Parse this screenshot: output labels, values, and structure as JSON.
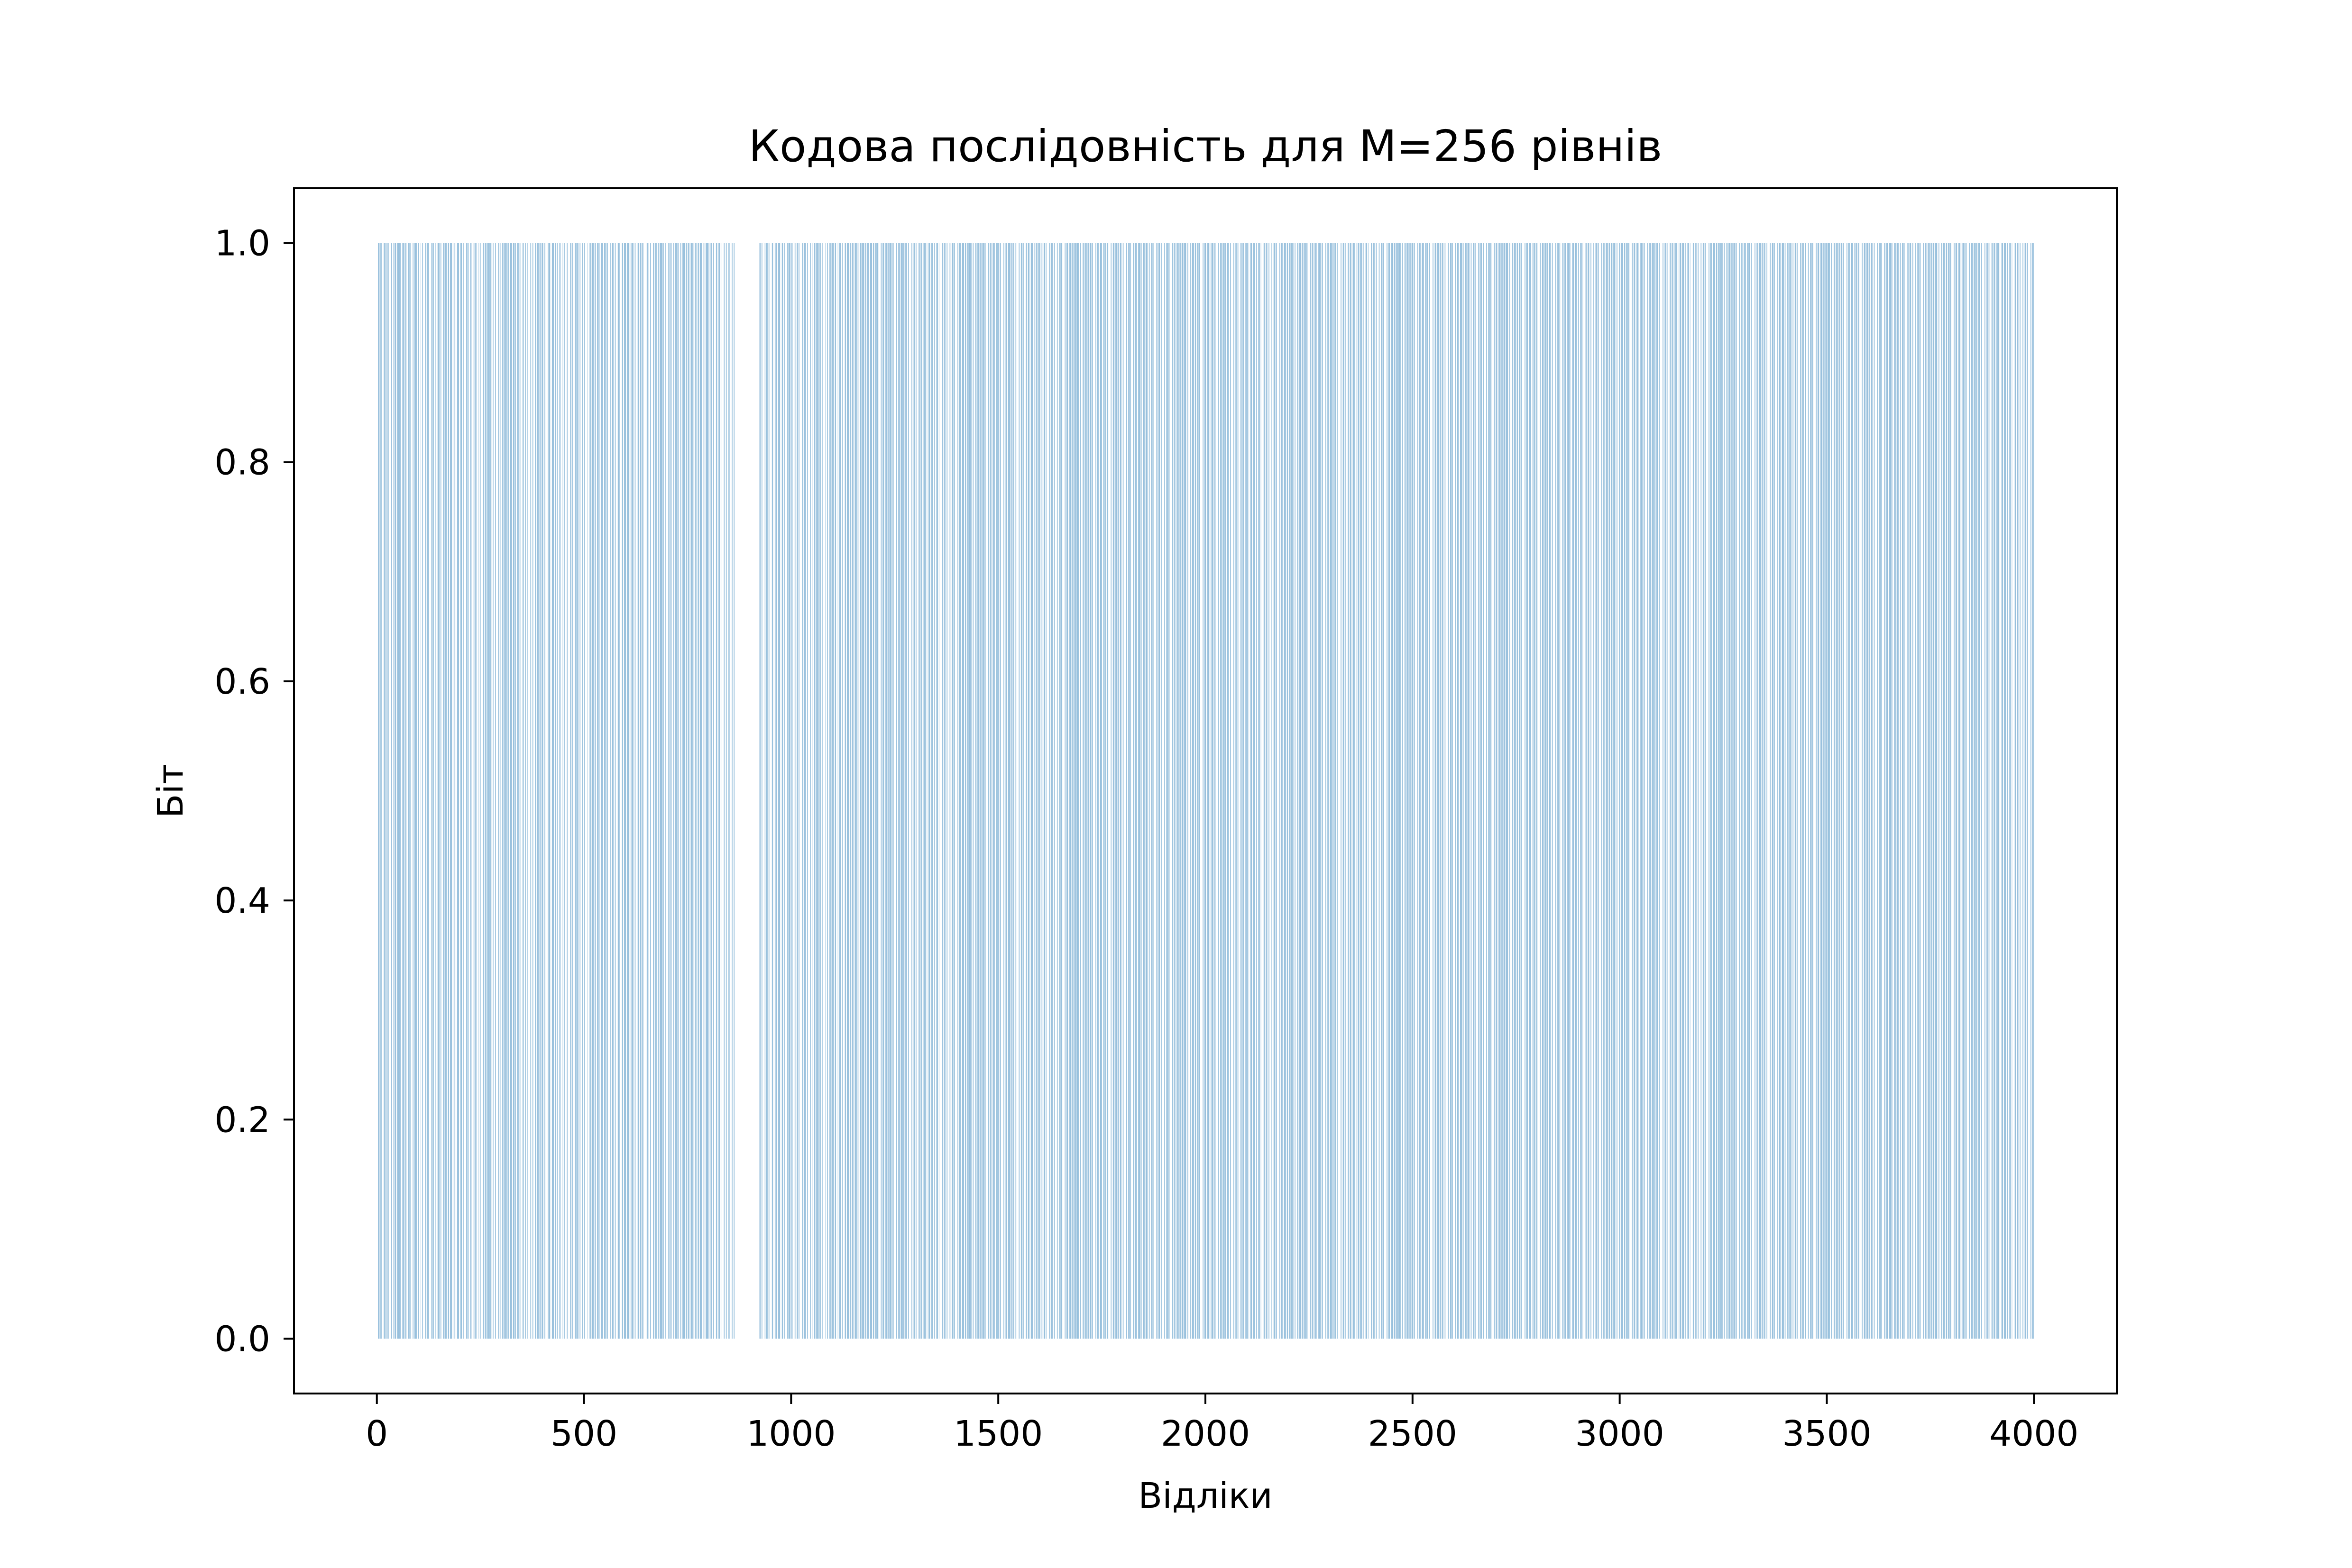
{
  "chart_data": {
    "type": "bar",
    "title": "Кодова послідовність для M=256 рівнів",
    "xlabel": "Відліки",
    "ylabel": "Біт",
    "xlim": [
      -200,
      4200
    ],
    "ylim": [
      -0.05,
      1.05
    ],
    "xticks": [
      0,
      500,
      1000,
      1500,
      2000,
      2500,
      3000,
      3500,
      4000
    ],
    "xtick_labels": [
      "0",
      "500",
      "1000",
      "1500",
      "2000",
      "2500",
      "3000",
      "3500",
      "4000"
    ],
    "yticks": [
      0.0,
      0.2,
      0.4,
      0.6,
      0.8,
      1.0
    ],
    "ytick_labels": [
      "0.0",
      "0.2",
      "0.4",
      "0.6",
      "0.8",
      "1.0"
    ],
    "grid": false,
    "color": "#1f77b4",
    "series": [
      {
        "values_encoding": "run-length bit sequence: alternating runs of 0s and 1s starting with 0; each number is the run length in samples (4000 samples, each sample is a 0 or 1 bit)",
        "runs": [
          3,
          4,
          2,
          3,
          5,
          4,
          1,
          2,
          2,
          3,
          6,
          2,
          3,
          1,
          2,
          4,
          2,
          7,
          1,
          2,
          3,
          5,
          2,
          3,
          4,
          2,
          1,
          3,
          5,
          2,
          2,
          6,
          3,
          2,
          4,
          1,
          3,
          2,
          5,
          3,
          2,
          4,
          6,
          2,
          1,
          3,
          4,
          2,
          3,
          5,
          2,
          2,
          4,
          3,
          1,
          6,
          2,
          3,
          2,
          5,
          4,
          2,
          3,
          1,
          2,
          5,
          3,
          4,
          2,
          2,
          6,
          3,
          1,
          2,
          4,
          3,
          5,
          2,
          2,
          3,
          4,
          1,
          3,
          2,
          5,
          3,
          2,
          4,
          2,
          6,
          1,
          3,
          3,
          2,
          4,
          2,
          5,
          3,
          2,
          1,
          4,
          3,
          2,
          6,
          2,
          3,
          3,
          5,
          2,
          4,
          1,
          2,
          3,
          4,
          2,
          2,
          5,
          3,
          3,
          2,
          4,
          1,
          6,
          2,
          3,
          2,
          4,
          3,
          2,
          5,
          1,
          3,
          2,
          4,
          3,
          2,
          6,
          2,
          1,
          3,
          4,
          5,
          2,
          3,
          2,
          2,
          4,
          3,
          5,
          1,
          2,
          3,
          4,
          2,
          6,
          3,
          2,
          2,
          4,
          3,
          1,
          5,
          3,
          2,
          4,
          2,
          3,
          2,
          6,
          1,
          4,
          3,
          2,
          5,
          2,
          3,
          3,
          4,
          2,
          1,
          2,
          5,
          3,
          4,
          2,
          3,
          6,
          2,
          2,
          4,
          3,
          2,
          5,
          3,
          1,
          2,
          4,
          3,
          2,
          5,
          2,
          6,
          3,
          2,
          1,
          4,
          3,
          2,
          5,
          3,
          2,
          4,
          2,
          3,
          6,
          1,
          2,
          3,
          4,
          2,
          5,
          3,
          2,
          4,
          3,
          2,
          2,
          6,
          1,
          3,
          4,
          2,
          5,
          3,
          2,
          3,
          4,
          2,
          2,
          5,
          1,
          3,
          4,
          2,
          3,
          6,
          2,
          3,
          2,
          4,
          3,
          5,
          2,
          1,
          2,
          4,
          3,
          3,
          2,
          5,
          4,
          2,
          3,
          6,
          1,
          2,
          3,
          4,
          2,
          2,
          5,
          3,
          3,
          4,
          2,
          1,
          6,
          2,
          3,
          2,
          4,
          3,
          5,
          2,
          3,
          2,
          60,
          3,
          2,
          2,
          4,
          1,
          3,
          5,
          2,
          2,
          6,
          3,
          4,
          2,
          1,
          3,
          2,
          5,
          4,
          3,
          2,
          2,
          6,
          3,
          1,
          4,
          2,
          3,
          5,
          2,
          3,
          4,
          2,
          1,
          6,
          3,
          2,
          4,
          3,
          2,
          5,
          2,
          3,
          1,
          4,
          3,
          2,
          6,
          2,
          3,
          4,
          2,
          5,
          1,
          3,
          2,
          4,
          3,
          2,
          6,
          2,
          3,
          4,
          1,
          2,
          5,
          3,
          2,
          4,
          3,
          2,
          6,
          1,
          3,
          2,
          4,
          3,
          5,
          2,
          2,
          3,
          4,
          1,
          6,
          2,
          3,
          2,
          4,
          3,
          5,
          2,
          3,
          2,
          4,
          1,
          3,
          6,
          2,
          2,
          4,
          3,
          5,
          2,
          3,
          1,
          4,
          2,
          3,
          6,
          2,
          3,
          4,
          2,
          5,
          1,
          3,
          2,
          4,
          3,
          2,
          6,
          2,
          3,
          4,
          1,
          2,
          5,
          3,
          2,
          4,
          3,
          6,
          2,
          1,
          3,
          4,
          2,
          5,
          3,
          2,
          3,
          4,
          2,
          1,
          6,
          3,
          2,
          4,
          3,
          2,
          5,
          2,
          3,
          4,
          1,
          3,
          6,
          2,
          2,
          4,
          3,
          5,
          2,
          3,
          2,
          4,
          1,
          6,
          3,
          2,
          4,
          3,
          2,
          5,
          2,
          3,
          2,
          4,
          1,
          3,
          6,
          2,
          2,
          4,
          3,
          5,
          3,
          2,
          1,
          4,
          2,
          3,
          6,
          2,
          3,
          4,
          2,
          5,
          1,
          3,
          2,
          4,
          3,
          2,
          6,
          2,
          3,
          4,
          1,
          2,
          5,
          3,
          2,
          4,
          3,
          6,
          2,
          1,
          3,
          4,
          2,
          5,
          3,
          2,
          3,
          4,
          2,
          1,
          6,
          3,
          2,
          4,
          3,
          2,
          5,
          2,
          3,
          4,
          1,
          3,
          6,
          2,
          2,
          4,
          3,
          5,
          2,
          3,
          2,
          4,
          1,
          6,
          3,
          2,
          4,
          3,
          2,
          5,
          2,
          3,
          2,
          4,
          1,
          3,
          6,
          2,
          2,
          4,
          3,
          5,
          3,
          2,
          1,
          4,
          2,
          3,
          6,
          2,
          3,
          4,
          2,
          5,
          1,
          3,
          2,
          4,
          3,
          2,
          6,
          2,
          3,
          4,
          1,
          2,
          5,
          3,
          2,
          4,
          3,
          6,
          2,
          1,
          3,
          4,
          2,
          5,
          3,
          2,
          3,
          4,
          2,
          1,
          6,
          3,
          2,
          4,
          3,
          2,
          5,
          2,
          3,
          4,
          1,
          3,
          6,
          2,
          2,
          4,
          3,
          5,
          2,
          3,
          2,
          4,
          1,
          6,
          3,
          2,
          4,
          3,
          2,
          5,
          2,
          3,
          2,
          4,
          1,
          3,
          6,
          2,
          2,
          4,
          3,
          5,
          3,
          2,
          1,
          4,
          2,
          3,
          6,
          2,
          3,
          4,
          2,
          5,
          1,
          3,
          2,
          4,
          3,
          2,
          6,
          2,
          3,
          4,
          1,
          2,
          5,
          3,
          2,
          4,
          3,
          6,
          2,
          1,
          3,
          4,
          2,
          5,
          3,
          2,
          3,
          4,
          2,
          1,
          6,
          3,
          2,
          4,
          3,
          2,
          5,
          2,
          3,
          4,
          1,
          3,
          6,
          2,
          2,
          4,
          3,
          5,
          2,
          3,
          2,
          4,
          1,
          6,
          3,
          2,
          4,
          3,
          2,
          5,
          2,
          3,
          2,
          4,
          1,
          3,
          6,
          2,
          2,
          4,
          3,
          5,
          3,
          2,
          1,
          4,
          2,
          3,
          6,
          2,
          3,
          4,
          2,
          5,
          1,
          3,
          2,
          4,
          3,
          2,
          6,
          2,
          3,
          4,
          1,
          2,
          5,
          3,
          2,
          4,
          3,
          6,
          2,
          1,
          3,
          4,
          2,
          5,
          3,
          2,
          3,
          4,
          2,
          1,
          6,
          3,
          2,
          4,
          3,
          2,
          5,
          2,
          3,
          4,
          1,
          3,
          6,
          2,
          2,
          4,
          3,
          5,
          2,
          3,
          2,
          4,
          1,
          6,
          3,
          2,
          4,
          3,
          2,
          5,
          2,
          3,
          2,
          4,
          1,
          3,
          6,
          2,
          2,
          4,
          3,
          5,
          3,
          2,
          1,
          4,
          2,
          3,
          6,
          2,
          3,
          4,
          2,
          5,
          1,
          3,
          2,
          4,
          3,
          2,
          6,
          2,
          3,
          4,
          1,
          2,
          5,
          3,
          2,
          4,
          3,
          6,
          2,
          1,
          3,
          4,
          2,
          5,
          3,
          2,
          3,
          4,
          2,
          1,
          6,
          3,
          2,
          4,
          3,
          2,
          5,
          2,
          3,
          4,
          1,
          3,
          6,
          2,
          2,
          4,
          3,
          5,
          2,
          3,
          2,
          4,
          1,
          6,
          3,
          2,
          4,
          3,
          2,
          5,
          2,
          3,
          2,
          4,
          1,
          3,
          6,
          2,
          2,
          4,
          3,
          5,
          3,
          2,
          1,
          4,
          2,
          3,
          6,
          2,
          3,
          4,
          2,
          5,
          1,
          3,
          2,
          4,
          3,
          2,
          6,
          2,
          3,
          4,
          1,
          2,
          5,
          3,
          2,
          4,
          3,
          6,
          2,
          1,
          3,
          4,
          2,
          5,
          3,
          2,
          3,
          4,
          2,
          1,
          6,
          3,
          2,
          4,
          3,
          2,
          5,
          2,
          3,
          4,
          1,
          3,
          6,
          2,
          2,
          4,
          3,
          5,
          2,
          3,
          2,
          4,
          1,
          6,
          3,
          2,
          4,
          3,
          2,
          5,
          2,
          3,
          2,
          4,
          1,
          3,
          6,
          2,
          2,
          4,
          3,
          5,
          3,
          2,
          1,
          4,
          2,
          3,
          6,
          2,
          3,
          4,
          2,
          5,
          1,
          3,
          2,
          4,
          3,
          2,
          6,
          2,
          3,
          4,
          1,
          2,
          5,
          3,
          2,
          4,
          3,
          6,
          2,
          1,
          3,
          4,
          2,
          5,
          3,
          2,
          3,
          4,
          2,
          1,
          6,
          3,
          2,
          4,
          3,
          2,
          5,
          2,
          3,
          4,
          1,
          3,
          6,
          2,
          2,
          4,
          3,
          5,
          2,
          3,
          2,
          4,
          1,
          6,
          3,
          2,
          4,
          3,
          2,
          5,
          2,
          3,
          2,
          4,
          1,
          3,
          6,
          2,
          2,
          4,
          3,
          5,
          3,
          2,
          1,
          4,
          2,
          3,
          6,
          2,
          3,
          4,
          2,
          5,
          1,
          3,
          2,
          4,
          3,
          2,
          6,
          2,
          3,
          4,
          1,
          2,
          5,
          3,
          2,
          4,
          3,
          6,
          2,
          1,
          3,
          4,
          2,
          5,
          3,
          2,
          3,
          4,
          2,
          1,
          6,
          3,
          2,
          4,
          3,
          2,
          5,
          2,
          3,
          4,
          1,
          3,
          6,
          2,
          2,
          4,
          3,
          5,
          2,
          3,
          2,
          4,
          1,
          6,
          3,
          2,
          4,
          3,
          2,
          5,
          2,
          3,
          2,
          4,
          1,
          3,
          6,
          2,
          2,
          4,
          3,
          5,
          3,
          2,
          1,
          4,
          2,
          3,
          6,
          2,
          3,
          4,
          2,
          5,
          1,
          3,
          2,
          4,
          3,
          2,
          6,
          2,
          3,
          4,
          1,
          2,
          5,
          3,
          2,
          4,
          3,
          6,
          2,
          1,
          3,
          4,
          2,
          5,
          3,
          2,
          3,
          4,
          2,
          1,
          6,
          3,
          2,
          4,
          3,
          2,
          5,
          2,
          3,
          4,
          1,
          3,
          6,
          2,
          2,
          4,
          3,
          5,
          2,
          3,
          2,
          4,
          1,
          6,
          3,
          2,
          4,
          3,
          2,
          5,
          2,
          3,
          2,
          4,
          1,
          3,
          6,
          2,
          2,
          4,
          3,
          5,
          3,
          2,
          1,
          4,
          2,
          3,
          6,
          2,
          3,
          4,
          2,
          5,
          1,
          3,
          2,
          4,
          3,
          2,
          6,
          2,
          3,
          4,
          1,
          2,
          5,
          3,
          2,
          4,
          3,
          6,
          2,
          1,
          3,
          4,
          2,
          5,
          3,
          2,
          3,
          4,
          2,
          1,
          6,
          3,
          2,
          4,
          3,
          2,
          5,
          2,
          3,
          4,
          1,
          3,
          6,
          2,
          2,
          4,
          3,
          5,
          2,
          3,
          2,
          4,
          1,
          6,
          3,
          2,
          4,
          3,
          2,
          5,
          2,
          3,
          2,
          4,
          1,
          3,
          6,
          2,
          2,
          4,
          3,
          5,
          3,
          2,
          1,
          4,
          2,
          3,
          6,
          2,
          3,
          4,
          2,
          5
        ]
      }
    ]
  }
}
